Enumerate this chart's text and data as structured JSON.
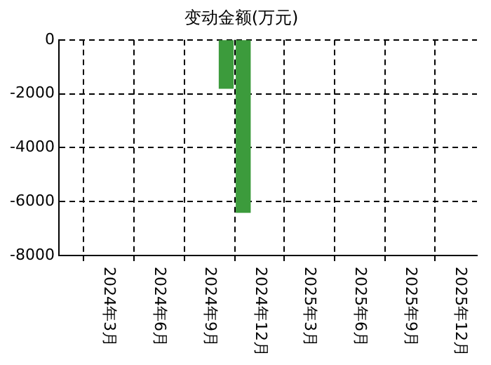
{
  "chart_data": {
    "type": "bar",
    "title": "变动金额(万元)",
    "x": [
      "2024-10",
      "2024-11"
    ],
    "values": [
      -1800,
      -6400
    ],
    "color": "#3c9b3c",
    "xlim": [
      "2023-12",
      "2026-01"
    ],
    "xticks": [
      {
        "value": "2024-03",
        "label": "2024年3月"
      },
      {
        "value": "2024-06",
        "label": "2024年6月"
      },
      {
        "value": "2024-09",
        "label": "2024年9月"
      },
      {
        "value": "2024-12",
        "label": "2024年12月"
      },
      {
        "value": "2025-03",
        "label": "2025年3月"
      },
      {
        "value": "2025-06",
        "label": "2025年6月"
      },
      {
        "value": "2025-09",
        "label": "2025年9月"
      },
      {
        "value": "2025-12",
        "label": "2025年12月"
      }
    ],
    "ylim": [
      -8000,
      0
    ],
    "yticks": [
      -8000,
      -6000,
      -4000,
      -2000,
      0
    ],
    "grid": true
  }
}
